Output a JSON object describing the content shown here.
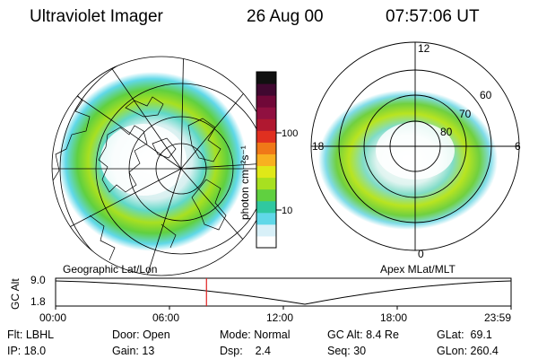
{
  "header": {
    "instrument": "Ultraviolet Imager",
    "date": "26 Aug 00",
    "time": "07:57:06 UT"
  },
  "left_panel": {
    "caption": "Geographic Lat/Lon"
  },
  "right_panel": {
    "caption": "Apex MLat/MLT",
    "mlt_labels": {
      "top": "12",
      "bottom": "0",
      "left": "18",
      "right": "6"
    },
    "lat_labels": [
      "60",
      "70",
      "80"
    ]
  },
  "colorbar": {
    "unit_label": "photon cm⁻²s⁻¹",
    "ticks": [
      "100",
      "10"
    ],
    "colors": [
      "#ffffff",
      "#d8f0f8",
      "#60d8e8",
      "#30c8a0",
      "#60d040",
      "#a8e020",
      "#e0e818",
      "#f8b020",
      "#f07818",
      "#e03020",
      "#b01830",
      "#901040",
      "#700838",
      "#400830",
      "#101010"
    ]
  },
  "timeline": {
    "axis_label": "GC Alt",
    "y_ticks": [
      "9.0",
      "1.8"
    ],
    "x_ticks": [
      "00:00",
      "06:00",
      "12:00",
      "18:00",
      "23:59"
    ],
    "marker_hour": 7.95,
    "marker_color": "#e02020"
  },
  "params": {
    "filter": {
      "label": "Flt:",
      "value": "LBHL"
    },
    "ip": {
      "label": "IP:",
      "value": "18.0"
    },
    "door": {
      "label": "Door:",
      "value": "Open"
    },
    "gain": {
      "label": "Gain:",
      "value": "13"
    },
    "mode": {
      "label": "Mode:",
      "value": "Normal"
    },
    "dsp": {
      "label": "Dsp:",
      "value": "2.4"
    },
    "gc_alt": {
      "label": "GC Alt:",
      "value": "8.4 Re"
    },
    "seq": {
      "label": "Seq:",
      "value": "30"
    },
    "glat": {
      "label": "GLat:",
      "value": "69.1"
    },
    "glon": {
      "label": "GLon:",
      "value": "260.4"
    }
  }
}
